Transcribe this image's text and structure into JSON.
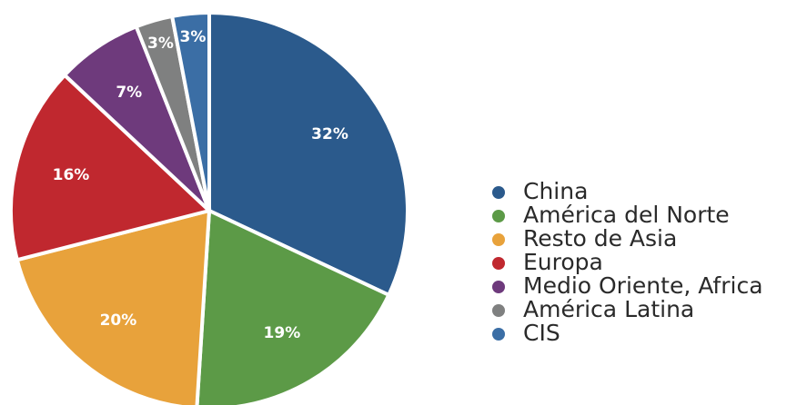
{
  "chart_data": {
    "type": "pie",
    "categories": [
      "China",
      "América del Norte",
      "Resto de Asia",
      "Europa",
      "Medio Oriente, Africa",
      "América Latina",
      "CIS"
    ],
    "values": [
      32,
      19,
      20,
      16,
      7,
      3,
      3
    ],
    "value_labels": [
      "32%",
      "19%",
      "20%",
      "16%",
      "7%",
      "3%",
      "3%"
    ],
    "colors": [
      "#2b5a8c",
      "#5c9a47",
      "#e8a23b",
      "#c0282f",
      "#6e3a7c",
      "#7f8080",
      "#3b6ea5"
    ],
    "legend": "right"
  }
}
